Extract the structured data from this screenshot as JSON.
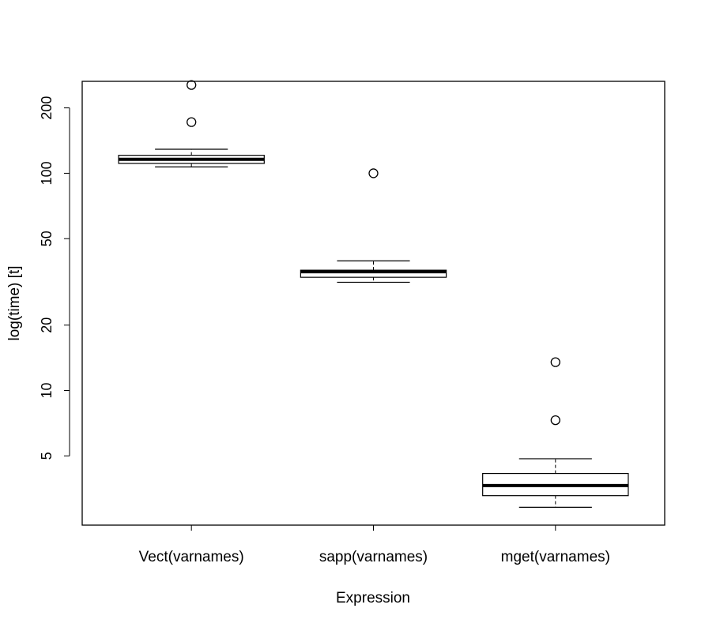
{
  "chart_data": {
    "type": "box",
    "xlabel": "Expression",
    "ylabel": "log(time) [t]",
    "yscale": "log",
    "ylim": [
      2.4,
      265
    ],
    "yticks": [
      5,
      10,
      20,
      50,
      100,
      200
    ],
    "categories": [
      "Vect(varnames)",
      "sapp(varnames)",
      "mget(varnames)"
    ],
    "boxes": [
      {
        "whisker_low": 107,
        "q1": 111,
        "median": 116,
        "q3": 121,
        "whisker_high": 129,
        "outliers": [
          172,
          255
        ]
      },
      {
        "whisker_low": 31.5,
        "q1": 33.2,
        "median": 35.2,
        "q3": 35.8,
        "whisker_high": 39.5,
        "outliers": [
          100
        ]
      },
      {
        "whisker_low": 2.9,
        "q1": 3.28,
        "median": 3.65,
        "q3": 4.15,
        "whisker_high": 4.85,
        "outliers": [
          7.3,
          13.5
        ]
      }
    ]
  }
}
